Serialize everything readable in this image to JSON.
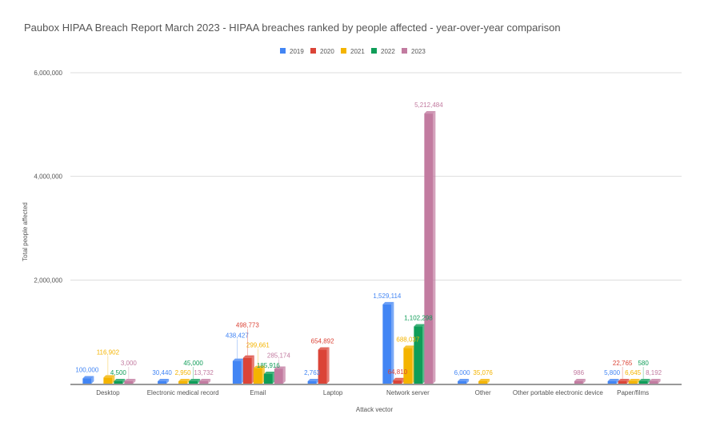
{
  "chart_data": {
    "type": "bar",
    "title": "Paubox HIPAA Breach Report March 2023 - HIPAA breaches ranked by people affected - year-over-year comparison",
    "xlabel": "Attack vector",
    "ylabel": "Total people affected",
    "ylim": [
      0,
      6000000
    ],
    "yticks": [
      "6,000,000",
      "4,000,000",
      "2,000,000"
    ],
    "ytick_values": [
      6000000,
      4000000,
      2000000
    ],
    "legend_position": "top",
    "categories": [
      "Desktop",
      "Electronic medical record",
      "Email",
      "Laptop",
      "Network server",
      "Other",
      "Other portable electronic device",
      "Paper/films"
    ],
    "series": [
      {
        "name": "2019",
        "color": "#4285f4",
        "values": [
          100000,
          30440,
          438427,
          2763,
          1529114,
          6000,
          null,
          5800
        ]
      },
      {
        "name": "2020",
        "color": "#db4437",
        "values": [
          null,
          null,
          498773,
          654892,
          64810,
          null,
          null,
          22765
        ]
      },
      {
        "name": "2021",
        "color": "#f4b400",
        "values": [
          116902,
          2950,
          299661,
          null,
          688037,
          35076,
          null,
          6645
        ]
      },
      {
        "name": "2022",
        "color": "#0f9d58",
        "values": [
          4500,
          45000,
          185916,
          null,
          1102298,
          null,
          null,
          580
        ]
      },
      {
        "name": "2023",
        "color": "#c27ba0",
        "values": [
          3000,
          13732,
          285174,
          null,
          5212484,
          null,
          986,
          8192
        ]
      }
    ],
    "labels": [
      [
        "100,000",
        "30,440",
        "438,427",
        "2,763",
        "1,529,114",
        "6,000",
        null,
        "5,800"
      ],
      [
        null,
        null,
        "498,773",
        "654,892",
        "64,810",
        null,
        null,
        "22,765"
      ],
      [
        "116,902",
        "2,950",
        "299,661",
        null,
        "688,037",
        "35,076",
        null,
        "6,645"
      ],
      [
        "4,500",
        "45,000",
        "185,916",
        null,
        "1,102,298",
        null,
        null,
        "580"
      ],
      [
        "3,000",
        "13,732",
        "285,174",
        null,
        "5,212,484",
        null,
        "986",
        "8,192"
      ]
    ]
  }
}
